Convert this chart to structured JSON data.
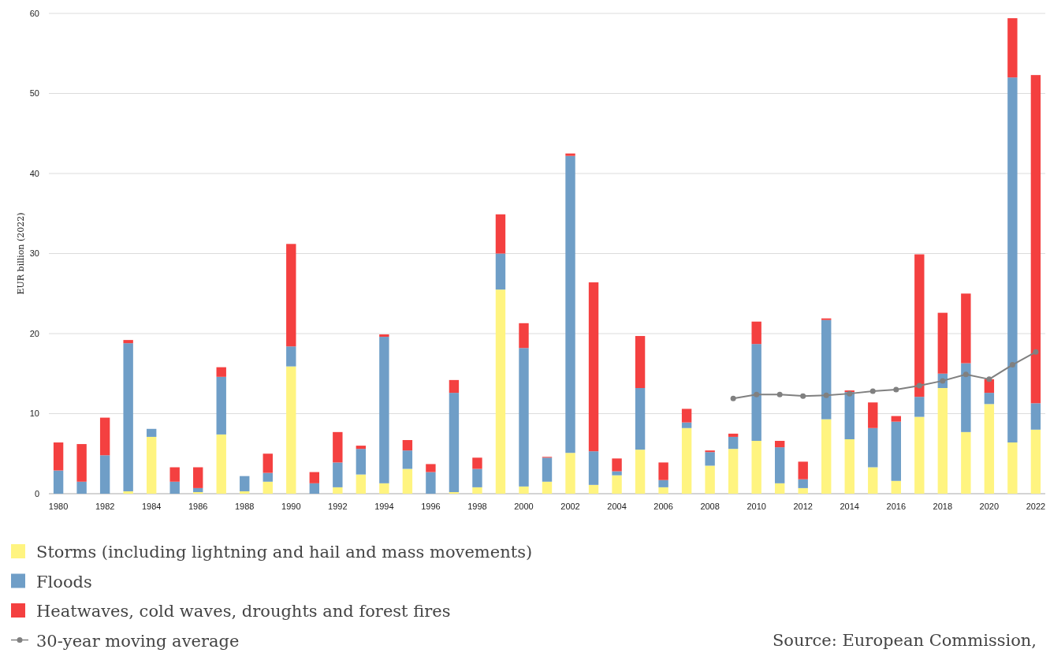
{
  "chart_data": {
    "type": "bar",
    "stacked": true,
    "ylabel": "EUR billion (2022)",
    "categories": [
      "1980",
      null,
      "1982",
      null,
      "1984",
      null,
      "1986",
      null,
      "1988",
      null,
      "1990",
      null,
      "1992",
      null,
      "1994",
      null,
      "1996",
      null,
      "1998",
      null,
      "2000",
      null,
      "2002",
      null,
      "2004",
      null,
      "2006",
      null,
      "2008",
      null,
      "2010",
      null,
      "2012",
      null,
      "2014",
      null,
      "2016",
      null,
      "2018",
      null,
      "2020",
      null,
      "2022"
    ],
    "series": [
      {
        "name": "Storms (including lightning and hail and mass movements)",
        "color": "#fff480",
        "values": [
          0,
          0,
          0,
          0.3,
          7.1,
          0,
          0.2,
          7.4,
          0.3,
          1.5,
          15.9,
          0,
          0.8,
          2.4,
          1.3,
          3.1,
          0,
          0.2,
          0.8,
          25.5,
          0.9,
          1.5,
          5.1,
          1.1,
          2.3,
          5.5,
          0.8,
          8.2,
          3.5,
          5.6,
          6.6,
          1.3,
          0.7,
          9.3,
          6.8,
          3.3,
          1.6,
          9.6,
          13.2,
          7.7,
          11.2,
          6.4,
          8.0
        ]
      },
      {
        "name": "Floods",
        "color": "#6f9ec7",
        "values": [
          2.9,
          1.5,
          4.8,
          18.5,
          1.0,
          1.5,
          0.5,
          7.2,
          1.9,
          1.1,
          2.5,
          1.3,
          3.1,
          3.2,
          18.3,
          2.3,
          2.7,
          12.4,
          2.3,
          4.5,
          17.3,
          3.0,
          37.1,
          4.2,
          0.5,
          7.7,
          0.9,
          0.7,
          1.7,
          1.5,
          12.1,
          4.5,
          1.1,
          12.4,
          5.9,
          4.9,
          7.4,
          2.5,
          1.8,
          8.6,
          1.4,
          45.6,
          3.3
        ]
      },
      {
        "name": "Heatwaves, cold waves, droughts and forest fires",
        "color": "#f44040",
        "values": [
          3.5,
          4.7,
          4.7,
          0.4,
          0,
          1.8,
          2.6,
          1.2,
          0,
          2.4,
          12.8,
          1.4,
          3.8,
          0.4,
          0.3,
          1.3,
          1.0,
          1.6,
          1.4,
          4.9,
          3.1,
          0.1,
          0.3,
          21.1,
          1.6,
          6.5,
          2.2,
          1.7,
          0.2,
          0.4,
          2.8,
          0.8,
          2.2,
          0.2,
          0.2,
          3.2,
          0.7,
          17.8,
          7.6,
          8.7,
          1.7,
          7.4,
          41.0
        ]
      },
      {
        "name": "30-year moving average",
        "type": "line",
        "color": "#808080",
        "marker": "circle",
        "values": [
          null,
          null,
          null,
          null,
          null,
          null,
          null,
          null,
          null,
          null,
          null,
          null,
          null,
          null,
          null,
          null,
          null,
          null,
          null,
          null,
          null,
          null,
          null,
          null,
          null,
          null,
          null,
          null,
          null,
          11.9,
          12.4,
          12.4,
          12.2,
          12.3,
          12.5,
          12.8,
          13.0,
          13.5,
          14.1,
          14.9,
          14.3,
          16.1,
          17.7
        ]
      }
    ],
    "ylim": [
      0,
      60
    ],
    "yticks": [
      0,
      10,
      20,
      30,
      40,
      50,
      60
    ],
    "grid": "y",
    "legend": "bottom",
    "annotations": [
      "Source: European Commission,"
    ]
  }
}
